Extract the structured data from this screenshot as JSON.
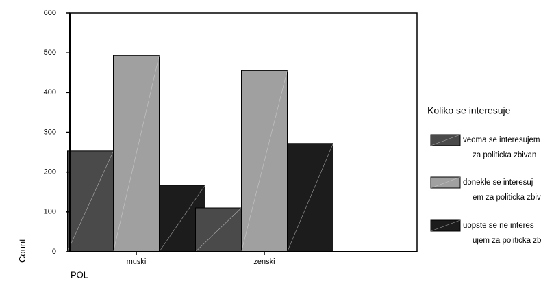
{
  "chart_data": {
    "type": "bar",
    "categories": [
      "muski",
      "zenski"
    ],
    "series": [
      {
        "name": "veoma se interesujem za politicka zbivan",
        "legend_lines": [
          "veoma se interesujem",
          "za politicka zbivan"
        ],
        "values": [
          253,
          110
        ],
        "color": "#4a4a4a"
      },
      {
        "name": "donekle se interesuj em za politicka zbiv",
        "legend_lines": [
          "donekle se interesuj",
          "em za politicka zbiv"
        ],
        "values": [
          493,
          455
        ],
        "color": "#a0a0a0"
      },
      {
        "name": "uopste se ne interes ujem za politicka zb",
        "legend_lines": [
          "uopste se ne interes",
          "ujem za politicka zb"
        ],
        "values": [
          167,
          272
        ],
        "color": "#1c1c1c"
      }
    ],
    "xlabel": "POL",
    "ylabel": "Count",
    "ylim": [
      0,
      600
    ],
    "yticks": [
      0,
      100,
      200,
      300,
      400,
      500,
      600
    ],
    "legend_title": "Koliko se interesuje",
    "legend_position": "right",
    "grid": false
  }
}
